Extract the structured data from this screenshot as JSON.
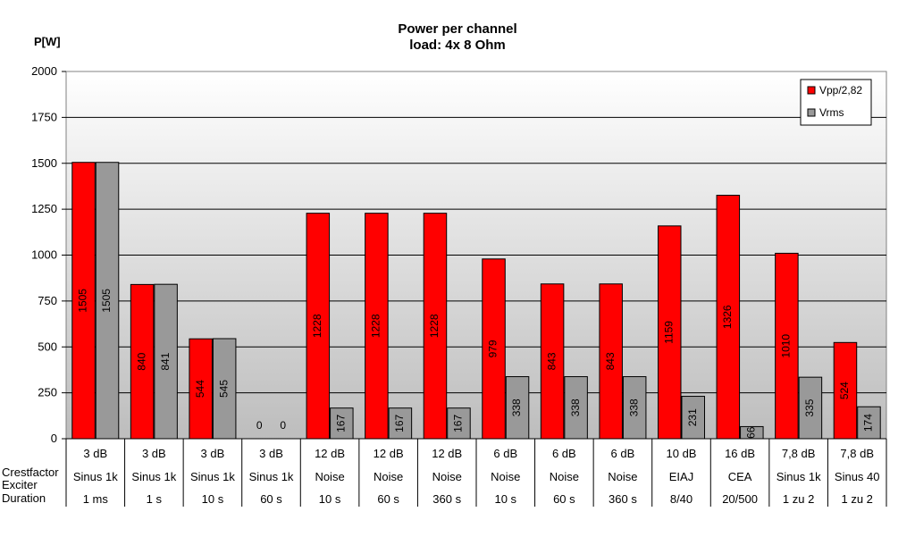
{
  "chart_data": {
    "type": "bar",
    "title": "Power per channel",
    "subtitle": "load:  4x 8 Ohm",
    "ylabel": "P[W]",
    "ylim": [
      0,
      2000
    ],
    "yticks": [
      "0",
      "250",
      "500",
      "750",
      "1000",
      "1250",
      "1500",
      "1750",
      "2000"
    ],
    "grid": true,
    "legend_position": "top-right",
    "categories": [
      [
        "3 dB",
        "Sinus 1k",
        "1 ms"
      ],
      [
        "3 dB",
        "Sinus 1k",
        "1 s"
      ],
      [
        "3 dB",
        "Sinus 1k",
        "10 s"
      ],
      [
        "3 dB",
        "Sinus 1k",
        "60 s"
      ],
      [
        "12 dB",
        "Noise",
        "10 s"
      ],
      [
        "12 dB",
        "Noise",
        "60 s"
      ],
      [
        "12 dB",
        "Noise",
        "360 s"
      ],
      [
        "6 dB",
        "Noise",
        "10 s"
      ],
      [
        "6 dB",
        "Noise",
        "60 s"
      ],
      [
        "6 dB",
        "Noise",
        "360 s"
      ],
      [
        "10 dB",
        "EIAJ",
        "8/40"
      ],
      [
        "16 dB",
        "CEA",
        "20/500"
      ],
      [
        "7,8 dB",
        "Sinus 1k",
        "1 zu 2"
      ],
      [
        "7,8 dB",
        "Sinus 40",
        "1 zu 2"
      ]
    ],
    "row_labels": [
      "Crestfactor",
      "Exciter",
      "Duration"
    ],
    "series": [
      {
        "name": "Vpp/2,82",
        "color": "#ff0000",
        "values": [
          1505,
          840,
          544,
          0,
          1228,
          1228,
          1228,
          979,
          843,
          843,
          1159,
          1326,
          1010,
          524
        ]
      },
      {
        "name": "Vrms",
        "color": "#999999",
        "values": [
          1505,
          841,
          545,
          0,
          167,
          167,
          167,
          338,
          338,
          338,
          231,
          66,
          335,
          174
        ]
      }
    ]
  }
}
